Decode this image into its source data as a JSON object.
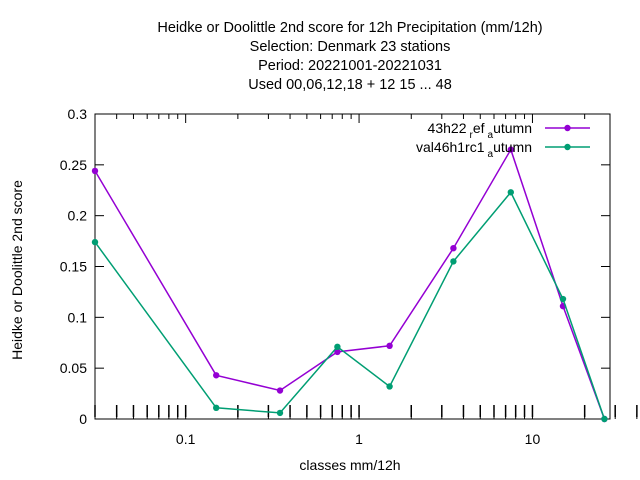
{
  "chart_data": {
    "type": "line",
    "title_lines": [
      "Heidke or Doolittle 2nd score  for 12h Precipitation (mm/12h)",
      "Selection: Denmark     23 stations",
      "Period: 20221001-20221031",
      "Used  00,06,12,18  + 12 15 ... 48"
    ],
    "xlabel": "classes mm/12h",
    "ylabel": "Heidke or Doolittle 2nd score",
    "xscale": "log",
    "xlim": [
      0.03,
      28
    ],
    "ylim": [
      0,
      0.3
    ],
    "y_ticks": [
      "0",
      "0.05",
      "0.1",
      "0.15",
      "0.2",
      "0.25",
      "0.3"
    ],
    "y_tick_values": [
      0,
      0.05,
      0.1,
      0.15,
      0.2,
      0.25,
      0.3
    ],
    "x_ticks": [
      "0.1",
      "1",
      "10"
    ],
    "x_tick_values": [
      0.1,
      1,
      10
    ],
    "x": [
      0.03,
      0.15,
      0.35,
      0.75,
      1.5,
      3.5,
      7.5,
      15,
      26
    ],
    "grid": false,
    "legend_position": "top-right",
    "series": [
      {
        "name_main": "43h22",
        "name_sub1": "r",
        "name_mid": "ef",
        "name_sub2": "a",
        "name_tail": "utumn",
        "color": "#9400d3",
        "values": [
          0.244,
          0.043,
          0.028,
          0.066,
          0.072,
          0.168,
          0.265,
          0.111,
          0.0
        ]
      },
      {
        "name_main": "val46h1rc1",
        "name_sub2": "a",
        "name_tail": "utumn",
        "color": "#009e73",
        "values": [
          0.174,
          0.011,
          0.006,
          0.071,
          0.032,
          0.155,
          0.223,
          0.118,
          0.0
        ]
      }
    ]
  }
}
